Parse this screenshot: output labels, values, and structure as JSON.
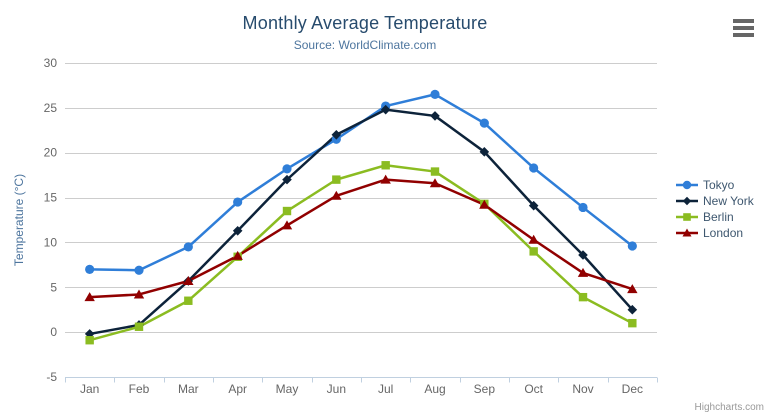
{
  "export_menu": {
    "icon": "hamburger-icon"
  },
  "credit": {
    "label": "Highcharts.com"
  },
  "chart_data": {
    "type": "line",
    "title": "Monthly Average Temperature",
    "subtitle": "Source: WorldClimate.com",
    "xlabel": "",
    "ylabel": "Temperature (°C)",
    "categories": [
      "Jan",
      "Feb",
      "Mar",
      "Apr",
      "May",
      "Jun",
      "Jul",
      "Aug",
      "Sep",
      "Oct",
      "Nov",
      "Dec"
    ],
    "ylim": [
      -5,
      30
    ],
    "ytick_interval": 5,
    "yticks": [
      -5,
      0,
      5,
      10,
      15,
      20,
      25,
      30
    ],
    "grid": "horizontal gridlines only",
    "legend_position": "right",
    "series": [
      {
        "name": "Tokyo",
        "color": "#2f7ed8",
        "marker": "circle",
        "values": [
          7.0,
          6.9,
          9.5,
          14.5,
          18.2,
          21.5,
          25.2,
          26.5,
          23.3,
          18.3,
          13.9,
          9.6
        ]
      },
      {
        "name": "New York",
        "color": "#0d233a",
        "marker": "diamond",
        "values": [
          -0.2,
          0.8,
          5.7,
          11.3,
          17.0,
          22.0,
          24.8,
          24.1,
          20.1,
          14.1,
          8.6,
          2.5
        ]
      },
      {
        "name": "Berlin",
        "color": "#8bbc21",
        "marker": "square",
        "values": [
          -0.9,
          0.6,
          3.5,
          8.4,
          13.5,
          17.0,
          18.6,
          17.9,
          14.3,
          9.0,
          3.9,
          1.0
        ]
      },
      {
        "name": "London",
        "color": "#910000",
        "marker": "triangle",
        "values": [
          3.9,
          4.2,
          5.7,
          8.5,
          11.9,
          15.2,
          17.0,
          16.6,
          14.2,
          10.3,
          6.6,
          4.8
        ]
      }
    ],
    "style_colors": {
      "title": "#274b6d",
      "subtitle": "#4d759e",
      "axis_title": "#4d759e",
      "axis_labels": "#666666",
      "gridline": "#cdcdcd",
      "axis_line": "#c0d0e0",
      "legend_text": "#3E576F",
      "credit_text": "#999999"
    }
  }
}
